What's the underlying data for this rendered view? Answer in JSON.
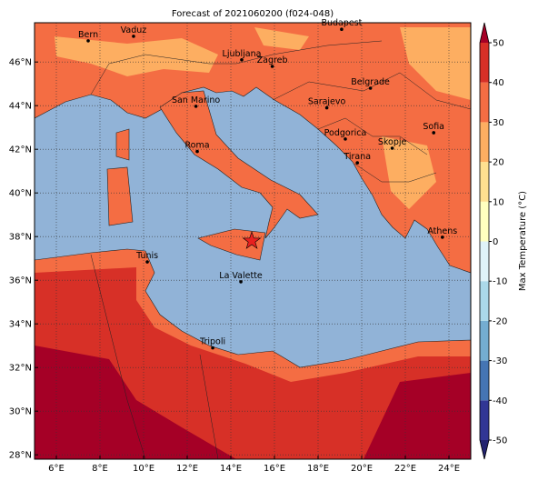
{
  "title": "Forecast of 2021060200 (f024-048)",
  "map": {
    "lon_range": [
      5,
      25
    ],
    "lat_range": [
      27.8,
      47.8
    ],
    "lon_ticks": [
      {
        "value": 6,
        "label": "6°E"
      },
      {
        "value": 8,
        "label": "8°E"
      },
      {
        "value": 10,
        "label": "10°E"
      },
      {
        "value": 12,
        "label": "12°E"
      },
      {
        "value": 14,
        "label": "14°E"
      },
      {
        "value": 16,
        "label": "16°E"
      },
      {
        "value": 18,
        "label": "18°E"
      },
      {
        "value": 20,
        "label": "20°E"
      },
      {
        "value": 22,
        "label": "22°E"
      },
      {
        "value": 24,
        "label": "24°E"
      }
    ],
    "lat_ticks": [
      {
        "value": 28,
        "label": "28°N"
      },
      {
        "value": 30,
        "label": "30°N"
      },
      {
        "value": 32,
        "label": "32°N"
      },
      {
        "value": 34,
        "label": "34°N"
      },
      {
        "value": 36,
        "label": "36°N"
      },
      {
        "value": 38,
        "label": "38°N"
      },
      {
        "value": 40,
        "label": "40°N"
      },
      {
        "value": 42,
        "label": "42°N"
      },
      {
        "value": 44,
        "label": "44°N"
      },
      {
        "value": 46,
        "label": "46°N"
      }
    ],
    "cities": [
      {
        "name": "Bern",
        "lon": 7.46,
        "lat": 46.97
      },
      {
        "name": "Vaduz",
        "lon": 9.54,
        "lat": 47.18
      },
      {
        "name": "Budapest",
        "lon": 19.08,
        "lat": 47.5
      },
      {
        "name": "Ljubljana",
        "lon": 14.5,
        "lat": 46.1
      },
      {
        "name": "Zagreb",
        "lon": 15.9,
        "lat": 45.8
      },
      {
        "name": "Belgrade",
        "lon": 20.4,
        "lat": 44.8
      },
      {
        "name": "San Marino",
        "lon": 12.4,
        "lat": 43.97
      },
      {
        "name": "Sarajevo",
        "lon": 18.4,
        "lat": 43.9
      },
      {
        "name": "Sofia",
        "lon": 23.3,
        "lat": 42.76
      },
      {
        "name": "Podgorica",
        "lon": 19.25,
        "lat": 42.47
      },
      {
        "name": "Skopje",
        "lon": 21.4,
        "lat": 42.05
      },
      {
        "name": "Roma",
        "lon": 12.46,
        "lat": 41.9
      },
      {
        "name": "Tirana",
        "lon": 19.8,
        "lat": 41.38
      },
      {
        "name": "Athens",
        "lon": 23.7,
        "lat": 37.97
      },
      {
        "name": "Tunis",
        "lon": 10.17,
        "lat": 36.84
      },
      {
        "name": "La Valette",
        "lon": 14.46,
        "lat": 35.93
      },
      {
        "name": "Tripoli",
        "lon": 13.17,
        "lat": 32.9
      }
    ],
    "marker": {
      "lon": 14.96,
      "lat": 37.8,
      "color": "#e8201f"
    }
  },
  "colorbar": {
    "label": "Max Temperature (°C)",
    "range": [
      -50,
      50
    ],
    "ticks": [
      -50,
      -40,
      -30,
      -20,
      -10,
      0,
      10,
      20,
      30,
      40,
      50
    ],
    "under_color": "#23236f",
    "over_color": "#a50026",
    "colors": [
      "#313695",
      "#4575b4",
      "#74add1",
      "#abd9e9",
      "#e0f3f8",
      "#ffffbf",
      "#fee090",
      "#fdae61",
      "#f46d43",
      "#d73027"
    ]
  }
}
